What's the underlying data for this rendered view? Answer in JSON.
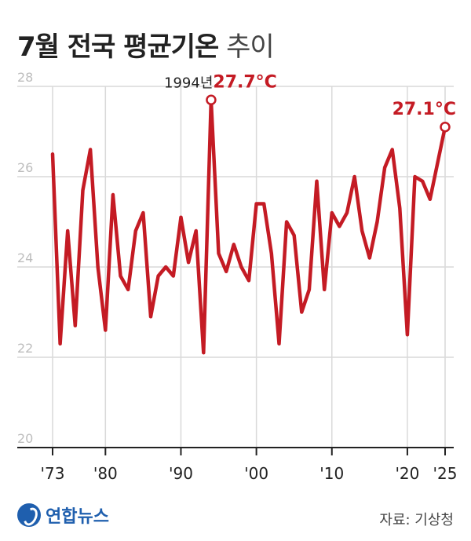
{
  "header": {
    "title_bold": "7월 전국 평균기온",
    "title_light": "추이"
  },
  "footer": {
    "logo_text": "연합뉴스",
    "source": "자료: 기상청"
  },
  "colors": {
    "line": "#c41b24",
    "grid": "#d9d9d9",
    "axis": "#222222",
    "tick_text": "#bdbdbd"
  },
  "chart_data": {
    "type": "line",
    "title": "7월 전국 평균기온 추이",
    "xlabel": "",
    "ylabel": "",
    "ylim": [
      20,
      28
    ],
    "xlim": [
      1973,
      2025
    ],
    "yticks": [
      20,
      22,
      24,
      26,
      28
    ],
    "xticks": [
      1973,
      1980,
      1990,
      2000,
      2010,
      2020,
      2025
    ],
    "xtick_labels": [
      "'73",
      "'80",
      "'90",
      "'00",
      "'10",
      "'20",
      "'25"
    ],
    "grid": true,
    "series": [
      {
        "color": "#c41b24",
        "x": [
          1973,
          1974,
          1975,
          1976,
          1977,
          1978,
          1979,
          1980,
          1981,
          1982,
          1983,
          1984,
          1985,
          1986,
          1987,
          1988,
          1989,
          1990,
          1991,
          1992,
          1993,
          1994,
          1995,
          1996,
          1997,
          1998,
          1999,
          2000,
          2001,
          2002,
          2003,
          2004,
          2005,
          2006,
          2007,
          2008,
          2009,
          2010,
          2011,
          2012,
          2013,
          2014,
          2015,
          2016,
          2017,
          2018,
          2019,
          2020,
          2021,
          2022,
          2023,
          2024,
          2025
        ],
        "y": [
          26.5,
          22.3,
          24.8,
          22.7,
          25.7,
          26.6,
          24.0,
          22.6,
          25.6,
          23.8,
          23.5,
          24.8,
          25.2,
          22.9,
          23.8,
          24.0,
          23.8,
          25.1,
          24.1,
          24.8,
          22.1,
          27.7,
          24.3,
          23.9,
          24.5,
          24.0,
          23.7,
          25.4,
          25.4,
          24.3,
          22.3,
          25.0,
          24.7,
          23.0,
          23.5,
          25.9,
          23.5,
          25.2,
          24.9,
          25.2,
          26.0,
          24.8,
          24.2,
          25.0,
          26.2,
          26.6,
          25.3,
          22.5,
          26.0,
          25.9,
          25.5,
          26.3,
          27.1
        ]
      }
    ],
    "annotations": [
      {
        "x": 1994,
        "y": 27.7,
        "prefix": "1994년",
        "text": "27.7°C"
      },
      {
        "x": 2025,
        "y": 27.1,
        "prefix": "",
        "text": "27.1°C"
      }
    ]
  }
}
